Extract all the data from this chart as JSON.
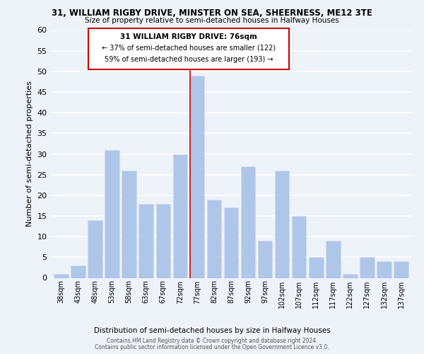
{
  "title_line1": "31, WILLIAM RIGBY DRIVE, MINSTER ON SEA, SHEERNESS, ME12 3TE",
  "title_line2": "Size of property relative to semi-detached houses in Halfway Houses",
  "bar_labels": [
    "38sqm",
    "43sqm",
    "48sqm",
    "53sqm",
    "58sqm",
    "63sqm",
    "67sqm",
    "72sqm",
    "77sqm",
    "82sqm",
    "87sqm",
    "92sqm",
    "97sqm",
    "102sqm",
    "107sqm",
    "112sqm",
    "117sqm",
    "122sqm",
    "127sqm",
    "132sqm",
    "137sqm"
  ],
  "bar_values": [
    1,
    3,
    14,
    31,
    26,
    18,
    18,
    30,
    49,
    19,
    17,
    27,
    9,
    26,
    15,
    5,
    9,
    1,
    5,
    4,
    4
  ],
  "highlight_index": 8,
  "bar_color": "#aec6e8",
  "highlight_line_color": "#cc0000",
  "ylabel": "Number of semi-detached properties",
  "xlabel": "Distribution of semi-detached houses by size in Halfway Houses",
  "ylim": [
    0,
    60
  ],
  "yticks": [
    0,
    5,
    10,
    15,
    20,
    25,
    30,
    35,
    40,
    45,
    50,
    55,
    60
  ],
  "annotation_title": "31 WILLIAM RIGBY DRIVE: 76sqm",
  "annotation_line1": "← 37% of semi-detached houses are smaller (122)",
  "annotation_line2": "59% of semi-detached houses are larger (193) →",
  "footer_line1": "Contains HM Land Registry data © Crown copyright and database right 2024.",
  "footer_line2": "Contains public sector information licensed under the Open Government Licence v3.0.",
  "background_color": "#eef2f9",
  "grid_color": "#ffffff"
}
